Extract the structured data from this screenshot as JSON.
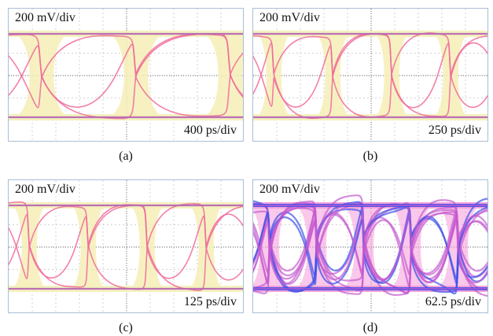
{
  "chart_data": [
    {
      "type": "eye-diagram",
      "caption": "(a)",
      "vertical_scale_label": "200 mV/div",
      "horizontal_scale_label": "400 ps/div",
      "eyes_visible": 2.5,
      "grid": true,
      "colors": {
        "trace": "#f06a9a",
        "envelope": "#f6efb7",
        "rail": "#5a63e0"
      }
    },
    {
      "type": "eye-diagram",
      "caption": "(b)",
      "vertical_scale_label": "200 mV/div",
      "horizontal_scale_label": "250 ps/div",
      "eyes_visible": 4,
      "grid": true,
      "colors": {
        "trace": "#f06a9a",
        "envelope": "#f6efb7",
        "rail": "#5a63e0"
      }
    },
    {
      "type": "eye-diagram",
      "caption": "(c)",
      "vertical_scale_label": "200 mV/div",
      "horizontal_scale_label": "125 ps/div",
      "eyes_visible": 4,
      "grid": true,
      "colors": {
        "trace": "#f06a9a",
        "envelope": "#f6efb7",
        "rail": "#5a63e0"
      }
    },
    {
      "type": "eye-diagram",
      "caption": "(d)",
      "vertical_scale_label": "200 mV/div",
      "horizontal_scale_label": "62.5 ps/div",
      "eyes_visible": 5,
      "grid": true,
      "noisy": true,
      "colors": {
        "trace": "#c55ad0",
        "envelope": "#f59ad8",
        "rail": "#3a4fe8"
      }
    }
  ]
}
